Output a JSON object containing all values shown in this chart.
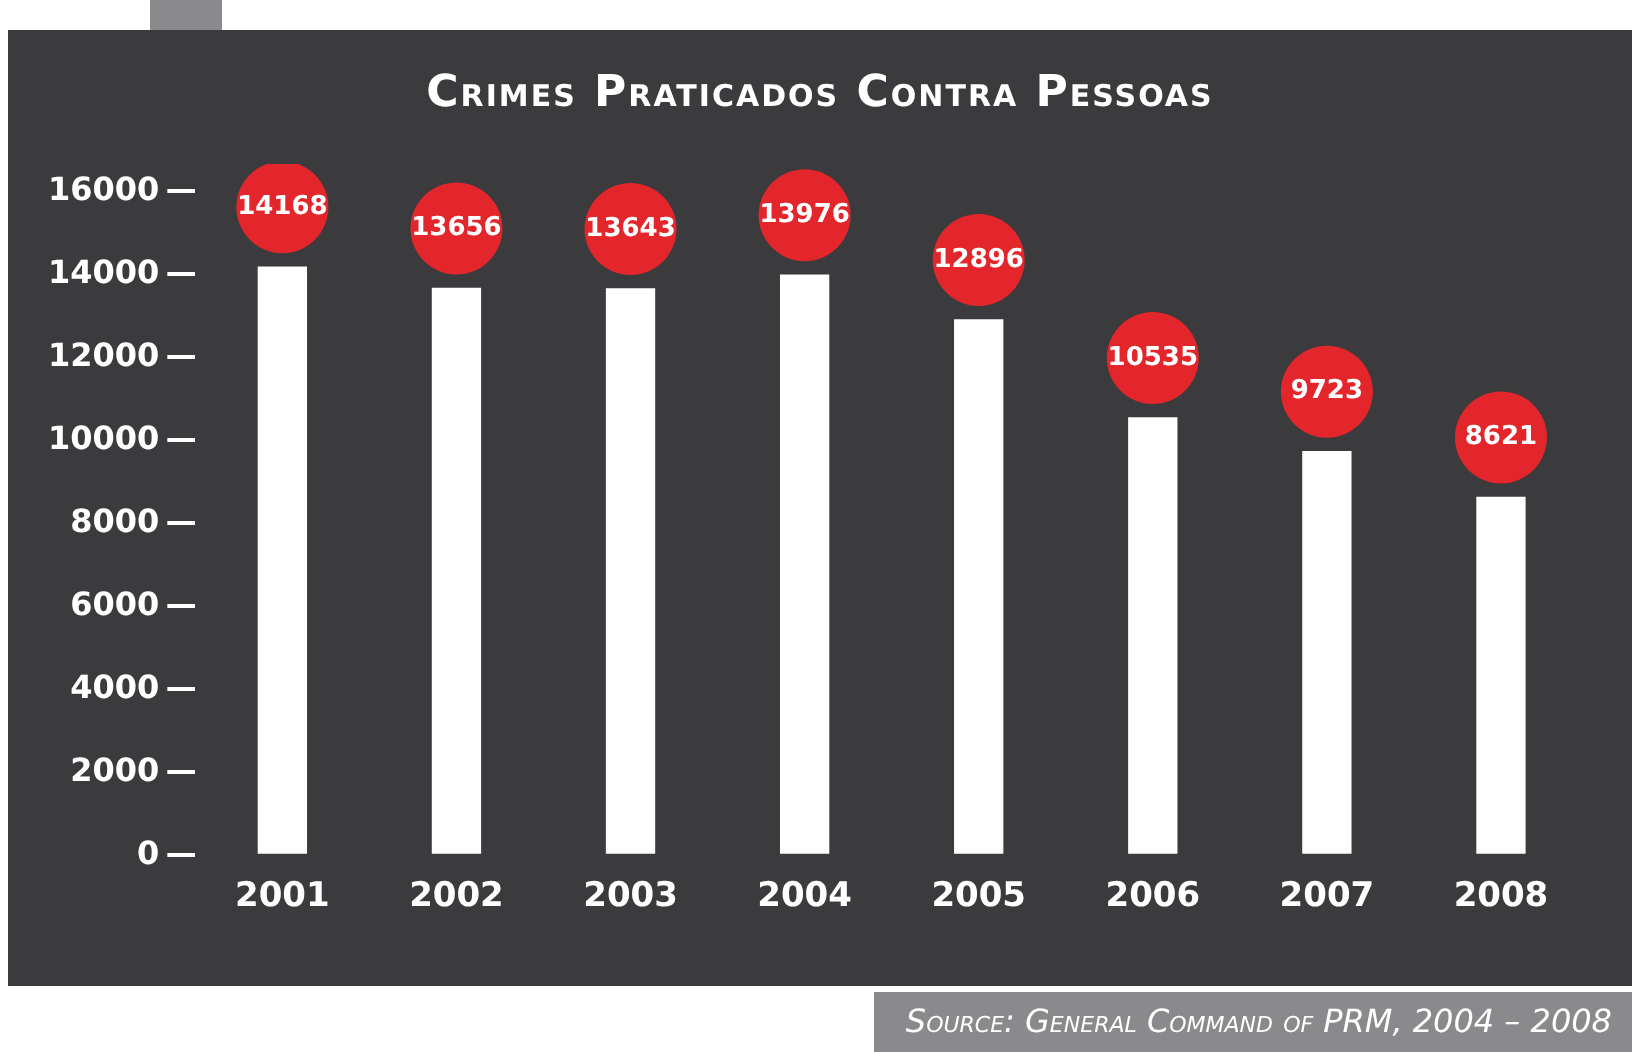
{
  "chart_data": {
    "type": "bar",
    "title": "Crimes Praticados Contra Pessoas",
    "categories": [
      "2001",
      "2002",
      "2003",
      "2004",
      "2005",
      "2006",
      "2007",
      "2008"
    ],
    "values": [
      14168,
      13656,
      13643,
      13976,
      12896,
      10535,
      9723,
      8621
    ],
    "color": "#ffffff",
    "ylim": [
      0,
      16000
    ],
    "yticks": [
      0,
      2000,
      4000,
      6000,
      8000,
      10000,
      12000,
      14000,
      16000
    ],
    "grid": false,
    "data_labels": true,
    "annotations": [
      "Source: General Command of PRM, 2004 – 2008"
    ]
  }
}
